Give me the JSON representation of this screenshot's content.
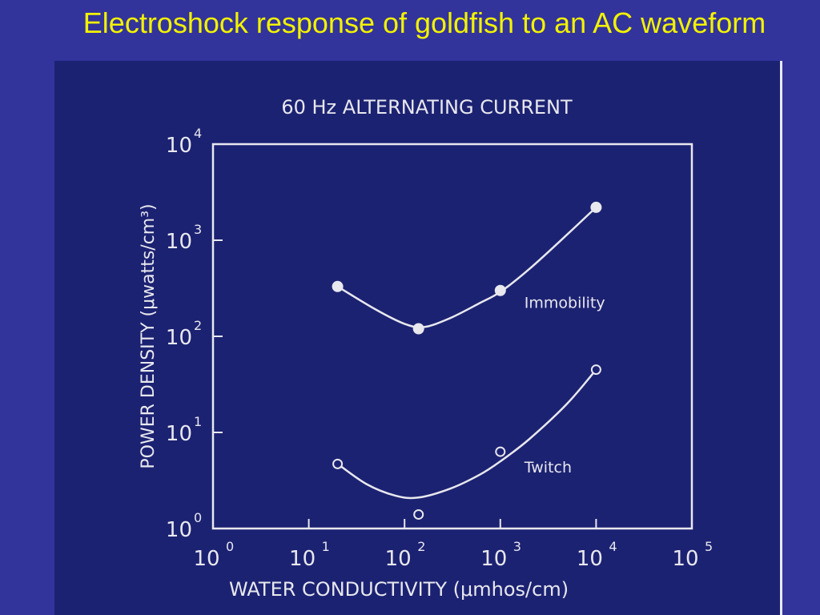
{
  "slide": {
    "title": "Electroshock response of goldfish to an AC waveform"
  },
  "colors": {
    "background": "#33339c",
    "figure_background": "#1c2272",
    "title": "#f2f200",
    "ink": "#e8e8ee"
  },
  "chart_data": {
    "type": "scatter",
    "title": "60 Hz ALTERNATING CURRENT",
    "xlabel": "WATER CONDUCTIVITY (μmhos/cm)",
    "ylabel": "POWER DENSITY (μwatts/cm³)",
    "x_scale": "log",
    "y_scale": "log",
    "xlim": [
      1,
      100000
    ],
    "ylim": [
      1,
      10000
    ],
    "grid": false,
    "legend": "none",
    "x_ticks": [
      {
        "value": 1,
        "base": "10",
        "exp": "0"
      },
      {
        "value": 10,
        "base": "10",
        "exp": "1"
      },
      {
        "value": 100,
        "base": "10",
        "exp": "2"
      },
      {
        "value": 1000,
        "base": "10",
        "exp": "3"
      },
      {
        "value": 10000,
        "base": "10",
        "exp": "4"
      },
      {
        "value": 100000,
        "base": "10",
        "exp": "5"
      }
    ],
    "y_ticks": [
      {
        "value": 1,
        "base": "10",
        "exp": "0"
      },
      {
        "value": 10,
        "base": "10",
        "exp": "1"
      },
      {
        "value": 100,
        "base": "10",
        "exp": "2"
      },
      {
        "value": 1000,
        "base": "10",
        "exp": "3"
      },
      {
        "value": 10000,
        "base": "10",
        "exp": "4"
      }
    ],
    "series": [
      {
        "name": "Immobility",
        "marker": "filled-circle",
        "x": [
          20,
          140,
          1000,
          10000
        ],
        "y": [
          330,
          120,
          300,
          2200
        ],
        "curve_x": [
          20,
          50,
          100,
          160,
          300,
          600,
          1000,
          2000,
          5000,
          10000
        ],
        "curve_y": [
          330,
          190,
          135,
          125,
          155,
          220,
          290,
          500,
          1150,
          2200
        ]
      },
      {
        "name": "Twitch",
        "marker": "open-circle",
        "x": [
          20,
          140,
          1000,
          10000
        ],
        "y": [
          4.7,
          1.4,
          6.3,
          45
        ],
        "curve_x": [
          20,
          40,
          80,
          140,
          300,
          600,
          1000,
          2000,
          5000,
          10000
        ],
        "curve_y": [
          4.7,
          2.9,
          2.2,
          2.1,
          2.6,
          3.6,
          5.0,
          8.5,
          20,
          45
        ]
      }
    ]
  }
}
